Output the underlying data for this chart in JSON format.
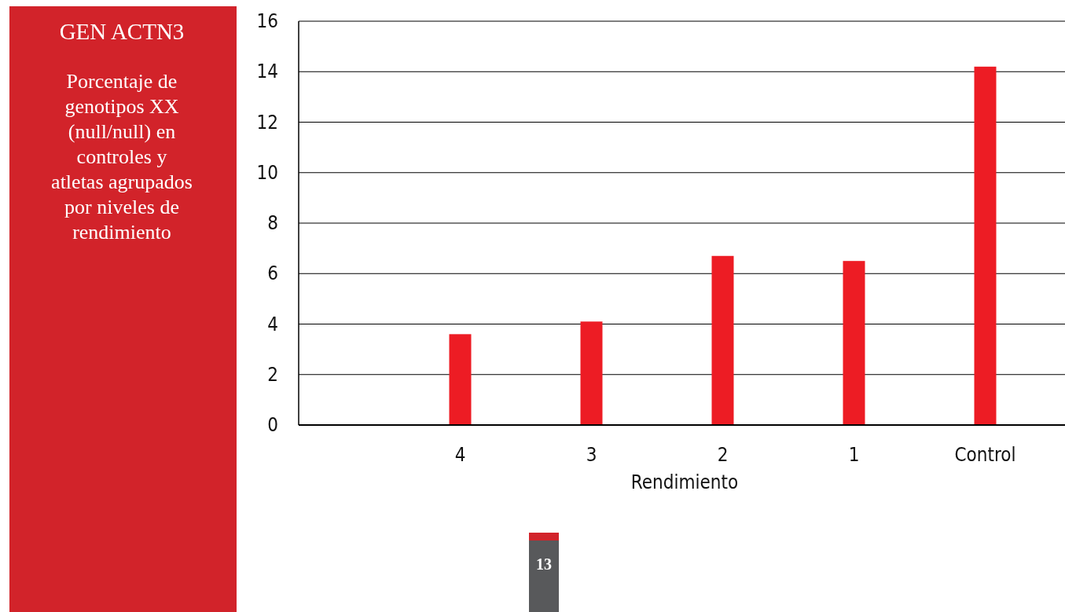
{
  "chart_data": {
    "type": "bar",
    "title": "GEN ACTN3",
    "subtitle": "Porcentaje de genotipos XX (null/null) en controles y atletas agrupados por niveles de rendimiento",
    "xlabel": "Rendimiento",
    "categories": [
      null,
      "4",
      "3",
      "2",
      "1",
      "Control"
    ],
    "values": [
      null,
      3.6,
      4.1,
      6.7,
      6.5,
      14.2
    ],
    "color": "#ed1c24",
    "ylim": [
      0,
      16
    ],
    "yticks": [
      0,
      2,
      4,
      6,
      8,
      10,
      12,
      14,
      16
    ],
    "grid": "y",
    "annotations": [
      "13"
    ]
  }
}
